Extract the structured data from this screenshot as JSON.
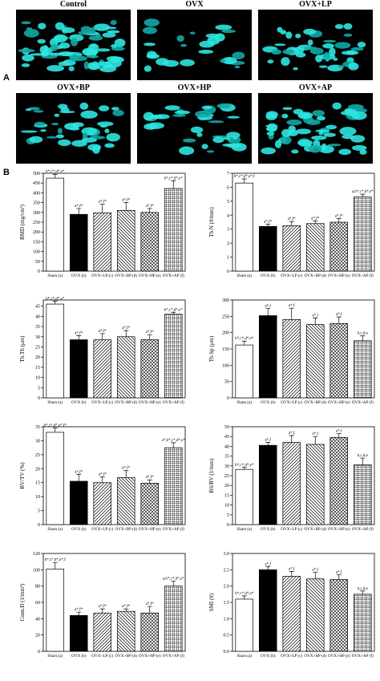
{
  "panel_a": {
    "label": "A",
    "images": [
      {
        "label": "Control"
      },
      {
        "label": "OVX"
      },
      {
        "label": "OVX+LP"
      },
      {
        "label": "OVX+BP"
      },
      {
        "label": "OVX+HP"
      },
      {
        "label": "OVX+AP"
      }
    ]
  },
  "panel_b": {
    "label": "B"
  },
  "chart_data": [
    {
      "type": "bar",
      "ylabel": "BMD (mg/cm³)",
      "categories": [
        "Sham (a)",
        "OVX (b)",
        "OVX+LP (c)",
        "OVX+BP (d)",
        "OVX+HP (e)",
        "OVX+AP (f)"
      ],
      "values": [
        475,
        290,
        298,
        310,
        300,
        422
      ],
      "errors": [
        20,
        30,
        45,
        40,
        20,
        40
      ],
      "annotations": [
        "b*,c*,d*,e*",
        "a*,f*",
        "a*,f*",
        "a*,f*",
        "a*,f*",
        "b*,c*,d*,e*"
      ],
      "patterns": [
        "white",
        "black",
        "hatch-right",
        "hatch-left",
        "crosshatch",
        "grid"
      ],
      "ylim": [
        0,
        500
      ],
      "yticks": [
        0,
        50,
        100,
        150,
        200,
        250,
        300,
        350,
        400,
        450,
        500
      ]
    },
    {
      "type": "bar",
      "ylabel": "Tb.N (#/mm)",
      "categories": [
        "Sham (a)",
        "OVX (b)",
        "OVX+LP (c)",
        "OVX+BP (d)",
        "OVX+HP (e)",
        "OVX+AP (f)"
      ],
      "values": [
        6.3,
        3.2,
        3.25,
        3.4,
        3.5,
        5.3
      ],
      "errors": [
        0.3,
        0.15,
        0.3,
        0.2,
        0.25,
        0.2
      ],
      "annotations": [
        "b*,c*,d*,e*,f",
        "a*,f*",
        "a*,f*",
        "a*,f*",
        "a*,f*",
        "a,b*,c*,d*,e*"
      ],
      "patterns": [
        "white",
        "black",
        "hatch-right",
        "hatch-left",
        "crosshatch",
        "grid"
      ],
      "ylim": [
        0,
        7
      ],
      "yticks": [
        0,
        1,
        2,
        3,
        4,
        5,
        6,
        7
      ]
    },
    {
      "type": "bar",
      "ylabel": "Tb.Th (μm)",
      "categories": [
        "Sham (a)",
        "OVX (b)",
        "OVX+LP (c)",
        "OVX+BP (d)",
        "OVX+HP (e)",
        "OVX+AP (f)"
      ],
      "values": [
        46,
        28.5,
        28.5,
        30,
        28.5,
        41
      ],
      "errors": [
        1.5,
        2,
        3,
        3,
        2.5,
        1
      ],
      "annotations": [
        "b*,c*,d*,e*",
        "a*,f*",
        "a*,f*",
        "a*,f*",
        "a*,f*",
        "b*,c*,d*,e*"
      ],
      "patterns": [
        "white",
        "black",
        "hatch-right",
        "hatch-left",
        "crosshatch",
        "grid"
      ],
      "ylim": [
        0,
        48
      ],
      "yticks": [
        0,
        5,
        10,
        15,
        20,
        25,
        30,
        35,
        40,
        45
      ]
    },
    {
      "type": "bar",
      "ylabel": "Tb.Sp (μm)",
      "categories": [
        "Sham (a)",
        "OVX (b)",
        "OVX+LP (c)",
        "OVX+BP (d)",
        "OVX+HP (e)",
        "OVX+AP (f)"
      ],
      "values": [
        162,
        252,
        240,
        225,
        228,
        175
      ],
      "errors": [
        12,
        22,
        35,
        20,
        20,
        15
      ],
      "annotations": [
        "b*,c*,d*,e*",
        "a*,f",
        "a*,f",
        "a*,f",
        "a*,f",
        "b,c,d,e"
      ],
      "patterns": [
        "white",
        "black",
        "hatch-right",
        "hatch-left",
        "crosshatch",
        "grid"
      ],
      "ylim": [
        0,
        300
      ],
      "yticks": [
        0,
        50,
        100,
        150,
        200,
        250,
        300
      ]
    },
    {
      "type": "bar",
      "ylabel": "BV/TV (%)",
      "categories": [
        "Sham (a)",
        "OVX (b)",
        "OVX+LP (c)",
        "OVX+BP (d)",
        "OVX+HP (e)",
        "OVX+AP (f)"
      ],
      "values": [
        33,
        15.5,
        15,
        16.8,
        14.8,
        27.5
      ],
      "errors": [
        1.5,
        2.5,
        2,
        2.5,
        1.2,
        1.8
      ],
      "annotations": [
        "b*,c*,d*,e*,f*",
        "a*,f*",
        "a*,f*",
        "a*,f*",
        "a*,f*",
        "a*,b*,c*,d*,e*"
      ],
      "patterns": [
        "white",
        "black",
        "hatch-right",
        "hatch-left",
        "crosshatch",
        "grid"
      ],
      "ylim": [
        0,
        35
      ],
      "yticks": [
        0,
        5,
        10,
        15,
        20,
        25,
        30,
        35
      ]
    },
    {
      "type": "bar",
      "ylabel": "BS/BV (1/mm)",
      "categories": [
        "Sham (a)",
        "OVX (b)",
        "OVX+LP (c)",
        "OVX+BP (d)",
        "OVX+HP (e)",
        "OVX+AP (f)"
      ],
      "values": [
        28.2,
        40.5,
        42,
        41,
        44.5,
        30.5
      ],
      "errors": [
        1,
        1.5,
        3.5,
        4,
        2,
        3.5
      ],
      "annotations": [
        "b*,c*,d*,e*",
        "a*,f",
        "a*,f",
        "a*,f",
        "a*,f",
        "b,c,d,e"
      ],
      "patterns": [
        "white",
        "black",
        "hatch-right",
        "hatch-left",
        "crosshatch",
        "grid"
      ],
      "ylim": [
        0,
        50
      ],
      "yticks": [
        0,
        5,
        10,
        15,
        20,
        25,
        30,
        35,
        40,
        45,
        50
      ]
    },
    {
      "type": "bar",
      "ylabel": "Conn.D (1/mm³)",
      "categories": [
        "Sham (a)",
        "OVX (b)",
        "OVX+LP (c)",
        "OVX+BP (d)",
        "OVX+HP (e)",
        "OVX+AP (f)"
      ],
      "values": [
        101,
        44,
        47,
        49,
        47,
        80
      ],
      "errors": [
        8,
        4,
        5,
        3,
        8,
        6
      ],
      "annotations": [
        "b*,c*,d*,e*,f",
        "a*,f*",
        "a*,f*",
        "a*,f*",
        "a*,f*",
        "a,b*,c*,d*,e*"
      ],
      "patterns": [
        "white",
        "black",
        "hatch-right",
        "hatch-left",
        "crosshatch",
        "grid"
      ],
      "ylim": [
        0,
        120
      ],
      "yticks": [
        0,
        20,
        40,
        60,
        80,
        100,
        120
      ]
    },
    {
      "type": "bar",
      "ylabel": "SMI (#)",
      "categories": [
        "Sham (a)",
        "OVX (b)",
        "OVX+LP (c)",
        "OVX+BP (d)",
        "OVX+HP (e)",
        "OVX+AP (f)"
      ],
      "values": [
        1.6,
        2.5,
        2.3,
        2.22,
        2.2,
        1.75
      ],
      "errors": [
        0.1,
        0.1,
        0.15,
        0.2,
        0.15,
        0.1
      ],
      "annotations": [
        "b*,c*,d*,e*",
        "a*,f",
        "a*,f",
        "a*,f",
        "a*,f",
        "b,c,d,e"
      ],
      "patterns": [
        "white",
        "black",
        "hatch-right",
        "hatch-left",
        "crosshatch",
        "grid"
      ],
      "ylim": [
        0,
        3
      ],
      "yticks": [
        {
          "value": 0,
          "label": "0.0"
        },
        {
          "value": 0.5,
          "label": "0.5"
        },
        {
          "value": 1,
          "label": "1.0"
        },
        {
          "value": 1.5,
          "label": "1.5"
        },
        {
          "value": 2,
          "label": "2.0"
        },
        {
          "value": 2.5,
          "label": "2.5"
        },
        {
          "value": 3,
          "label": "3.0"
        }
      ]
    }
  ]
}
